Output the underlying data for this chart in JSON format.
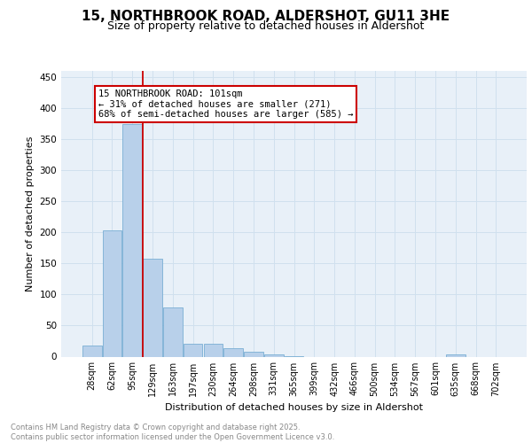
{
  "title_line1": "15, NORTHBROOK ROAD, ALDERSHOT, GU11 3HE",
  "title_line2": "Size of property relative to detached houses in Aldershot",
  "xlabel": "Distribution of detached houses by size in Aldershot",
  "ylabel": "Number of detached properties",
  "bar_values": [
    18,
    203,
    374,
    158,
    79,
    21,
    21,
    13,
    8,
    4,
    1,
    0,
    0,
    0,
    0,
    0,
    0,
    0,
    3,
    0,
    0
  ],
  "categories": [
    "28sqm",
    "62sqm",
    "95sqm",
    "129sqm",
    "163sqm",
    "197sqm",
    "230sqm",
    "264sqm",
    "298sqm",
    "331sqm",
    "365sqm",
    "399sqm",
    "432sqm",
    "466sqm",
    "500sqm",
    "534sqm",
    "567sqm",
    "601sqm",
    "635sqm",
    "668sqm",
    "702sqm"
  ],
  "bar_color": "#b8d0ea",
  "bar_edge_color": "#7aaed4",
  "grid_color": "#d0e0ee",
  "bg_color": "#e8f0f8",
  "vline_x_index": 2,
  "vline_color": "#cc0000",
  "annotation_text": "15 NORTHBROOK ROAD: 101sqm\n← 31% of detached houses are smaller (271)\n68% of semi-detached houses are larger (585) →",
  "annotation_box_color": "#cc0000",
  "ylim": [
    0,
    460
  ],
  "yticks": [
    0,
    50,
    100,
    150,
    200,
    250,
    300,
    350,
    400,
    450
  ],
  "footnote": "Contains HM Land Registry data © Crown copyright and database right 2025.\nContains public sector information licensed under the Open Government Licence v3.0.",
  "footnote_color": "#888888",
  "title_fontsize": 11,
  "subtitle_fontsize": 9,
  "ylabel_fontsize": 8,
  "xlabel_fontsize": 8,
  "tick_fontsize": 7,
  "annot_fontsize": 7.5,
  "footnote_fontsize": 6
}
